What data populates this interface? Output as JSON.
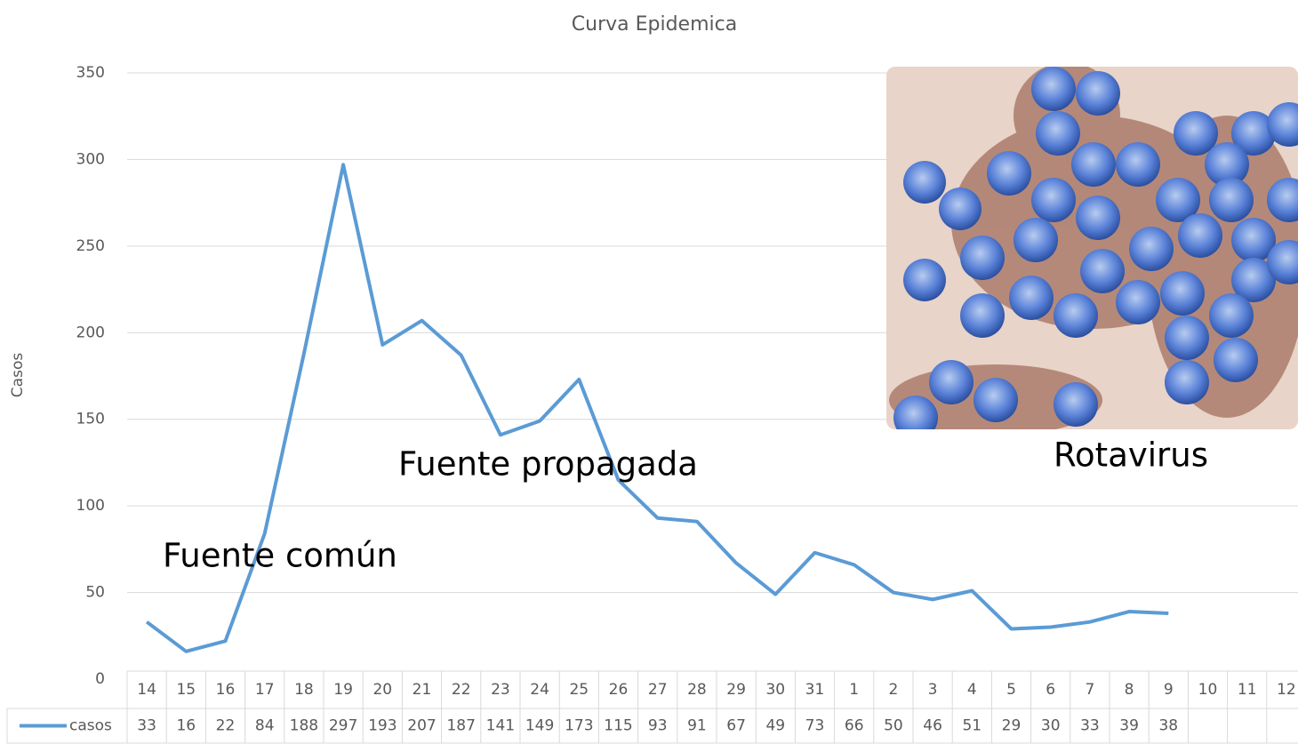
{
  "chart_data": {
    "type": "line",
    "title": "Curva Epidemica",
    "y_label": "Casos",
    "categories": [
      "14",
      "15",
      "16",
      "17",
      "18",
      "19",
      "20",
      "21",
      "22",
      "23",
      "24",
      "25",
      "26",
      "27",
      "28",
      "29",
      "30",
      "31",
      "1",
      "2",
      "3",
      "4",
      "5",
      "6",
      "7",
      "8",
      "9",
      "10",
      "11",
      "12"
    ],
    "series": [
      {
        "name": "casos",
        "color": "#5b9bd5",
        "values": [
          33,
          16,
          22,
          84,
          188,
          297,
          193,
          207,
          187,
          141,
          149,
          173,
          115,
          93,
          91,
          67,
          49,
          73,
          66,
          50,
          46,
          51,
          29,
          30,
          33,
          39,
          38,
          null,
          null,
          null
        ]
      }
    ],
    "ylim": [
      0,
      350
    ],
    "yticks": [
      0,
      50,
      100,
      150,
      200,
      250,
      300,
      350
    ],
    "grid": true,
    "data_table": true,
    "annotations": [
      "Fuente común",
      "Fuente propagada",
      "Rotavirus"
    ]
  }
}
